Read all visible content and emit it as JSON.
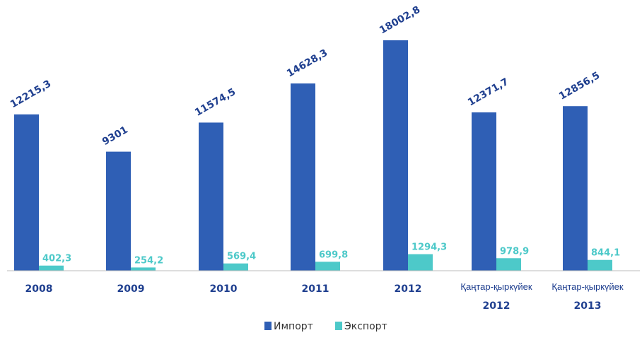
{
  "chart_data": {
    "type": "bar",
    "categories": [
      [
        "2008"
      ],
      [
        "2009"
      ],
      [
        "2010"
      ],
      [
        "2011"
      ],
      [
        "2012"
      ],
      [
        "Қаңтар-қыркүйек",
        "2012"
      ],
      [
        "Қаңтар-қыркүйек",
        "2013"
      ]
    ],
    "series": [
      {
        "name": "Импорт",
        "color": "#2f5fb5",
        "values": [
          12215.3,
          9301,
          11574.5,
          14628.3,
          18002.8,
          12371.7,
          12856.5
        ],
        "labels": [
          "12215,3",
          "9301",
          "11574,5",
          "14628,3",
          "18002,8",
          "12371,7",
          "12856,5"
        ]
      },
      {
        "name": "Экспорт",
        "color": "#4dc9c9",
        "values": [
          402.3,
          254.2,
          569.4,
          699.8,
          1294.3,
          978.9,
          844.1
        ],
        "labels": [
          "402,3",
          "254,2",
          "569,4",
          "699,8",
          "1294,3",
          "978,9",
          "844,1"
        ]
      }
    ],
    "ylim": [
      0,
      18500
    ],
    "grid": false,
    "legend_position": "bottom-center"
  }
}
